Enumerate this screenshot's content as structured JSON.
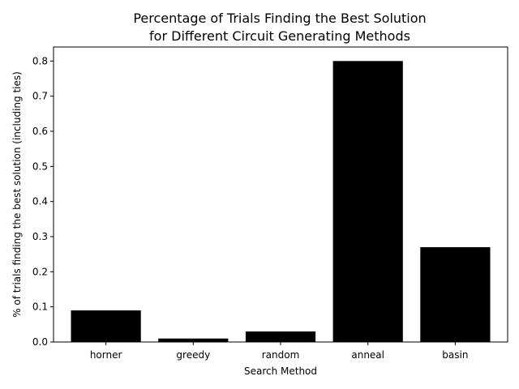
{
  "chart_data": {
    "type": "bar",
    "title_line1": "Percentage of Trials Finding the Best Solution",
    "title_line2": "for Different Circuit Generating Methods",
    "xlabel": "Search Method",
    "ylabel": "% of trials finding the best solution (including ties)",
    "categories": [
      "horner",
      "greedy",
      "random",
      "anneal",
      "basin"
    ],
    "values": [
      0.09,
      0.01,
      0.03,
      0.8,
      0.27
    ],
    "ylim": [
      0,
      0.84
    ],
    "yticks": [
      "0.0",
      "0.1",
      "0.2",
      "0.3",
      "0.4",
      "0.5",
      "0.6",
      "0.7",
      "0.8"
    ],
    "bar_color": "#000000",
    "grid": false
  }
}
